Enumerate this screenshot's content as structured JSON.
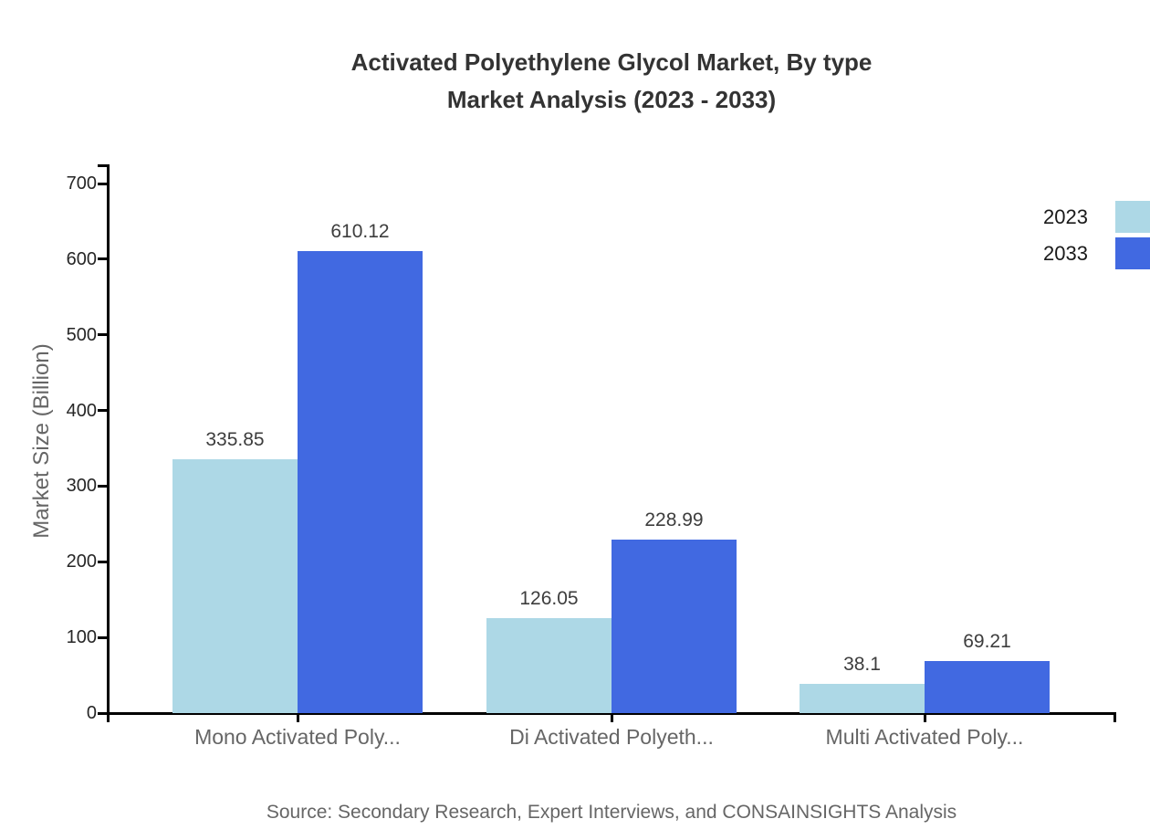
{
  "title": {
    "line1": "Activated Polyethylene Glycol Market, By type",
    "line2": "Market Analysis (2023 - 2033)"
  },
  "source": "Source: Secondary Research, Expert Interviews, and CONSAINSIGHTS Analysis",
  "legend": [
    {
      "label": "2023",
      "color": "#ADD8E6"
    },
    {
      "label": "2033",
      "color": "#4169E1"
    }
  ],
  "colors": {
    "background": "#ffffff",
    "axis": "#000000",
    "title_text": "#333333",
    "tick_text": "#262626",
    "muted_text": "#666666",
    "series_2023": "#ADD8E6",
    "series_2033": "#4169E1"
  },
  "chart_data": {
    "type": "bar",
    "title": "Activated Polyethylene Glycol Market, By type Market Analysis (2023 - 2033)",
    "categories": [
      "Mono Activated Poly...",
      "Di Activated Polyeth...",
      "Multi Activated Poly..."
    ],
    "series": [
      {
        "name": "2023",
        "color": "#ADD8E6",
        "values": [
          335.85,
          126.05,
          38.1
        ]
      },
      {
        "name": "2033",
        "color": "#4169E1",
        "values": [
          610.12,
          228.99,
          69.21
        ]
      }
    ],
    "value_labels": [
      [
        "335.85",
        "126.05",
        "38.1"
      ],
      [
        "610.12",
        "228.99",
        "69.21"
      ]
    ],
    "xlabel": "",
    "ylabel": "Market Size (Billion)",
    "ylim": [
      0,
      700
    ],
    "yticks": [
      0,
      100,
      200,
      300,
      400,
      500,
      600,
      700
    ],
    "grid": false,
    "legend_position": "top-right"
  }
}
